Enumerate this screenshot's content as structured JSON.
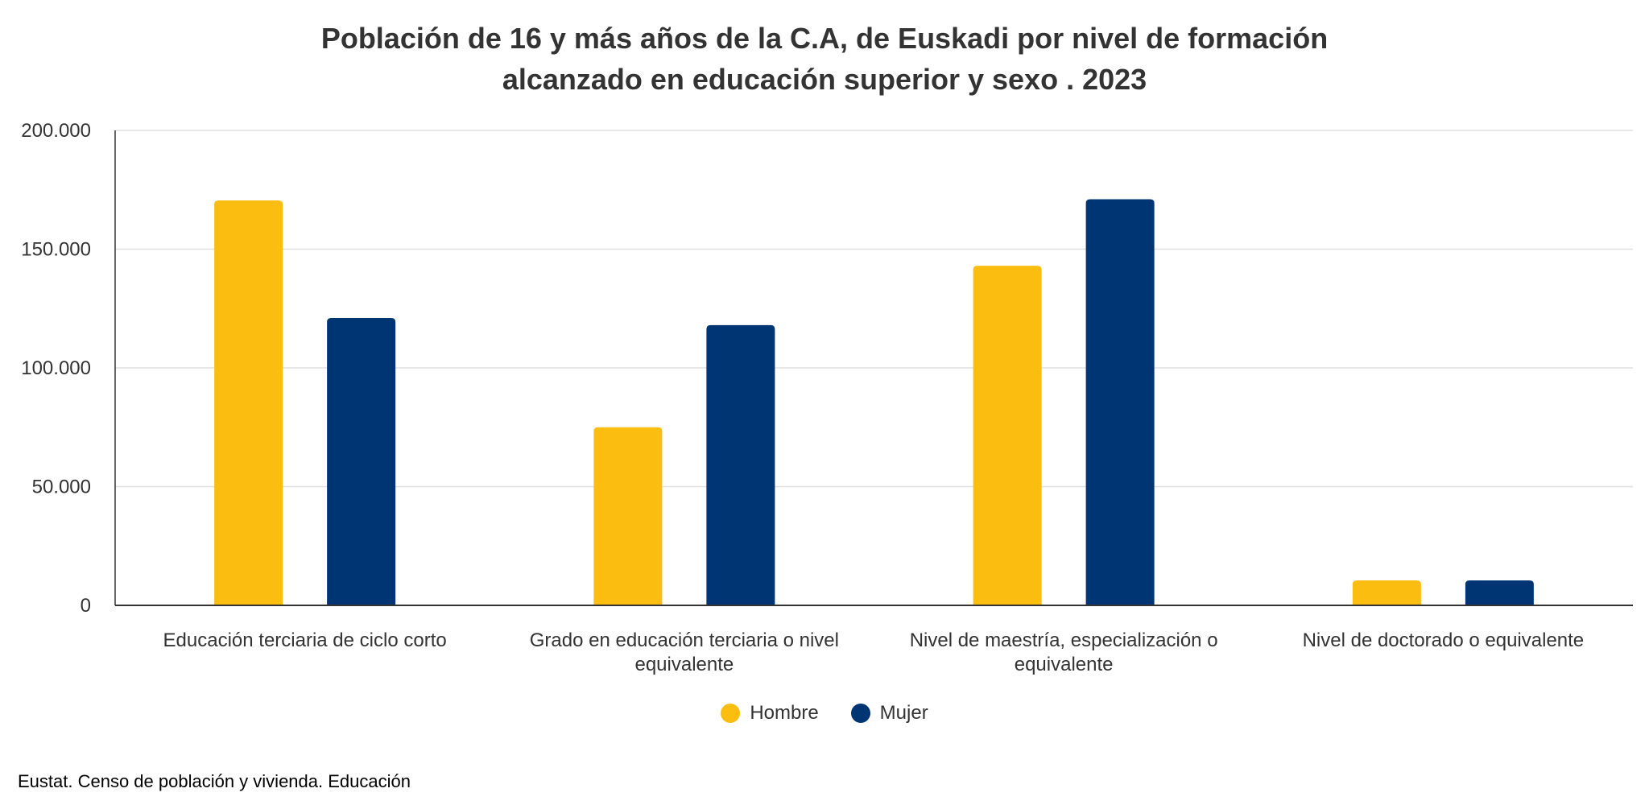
{
  "chart_data": {
    "type": "bar",
    "title_lines": [
      "Población de 16 y más años de la C.A, de Euskadi por nivel de formación",
      "alcanzado en educación superior y sexo . 2023"
    ],
    "categories": [
      [
        "Educación terciaria de ciclo corto"
      ],
      [
        "Grado en educación terciaria o nivel",
        "equivalente"
      ],
      [
        "Nivel de maestría, especialización o",
        "equivalente"
      ],
      [
        "Nivel de doctorado o equivalente"
      ]
    ],
    "series": [
      {
        "name": "Hombre",
        "color": "#FCBD11",
        "values": [
          170500,
          75000,
          143000,
          10500
        ]
      },
      {
        "name": "Mujer",
        "color": "#003574",
        "values": [
          121000,
          118000,
          171000,
          10500
        ]
      }
    ],
    "ylim": [
      0,
      200000
    ],
    "yticks": [
      0,
      50000,
      100000,
      150000,
      200000
    ],
    "ytick_labels": [
      "0",
      "50.000",
      "100.000",
      "150.000",
      "200.000"
    ],
    "grid": true,
    "legend_position": "bottom-center"
  },
  "source": "Eustat. Censo de población y vivienda. Educación"
}
